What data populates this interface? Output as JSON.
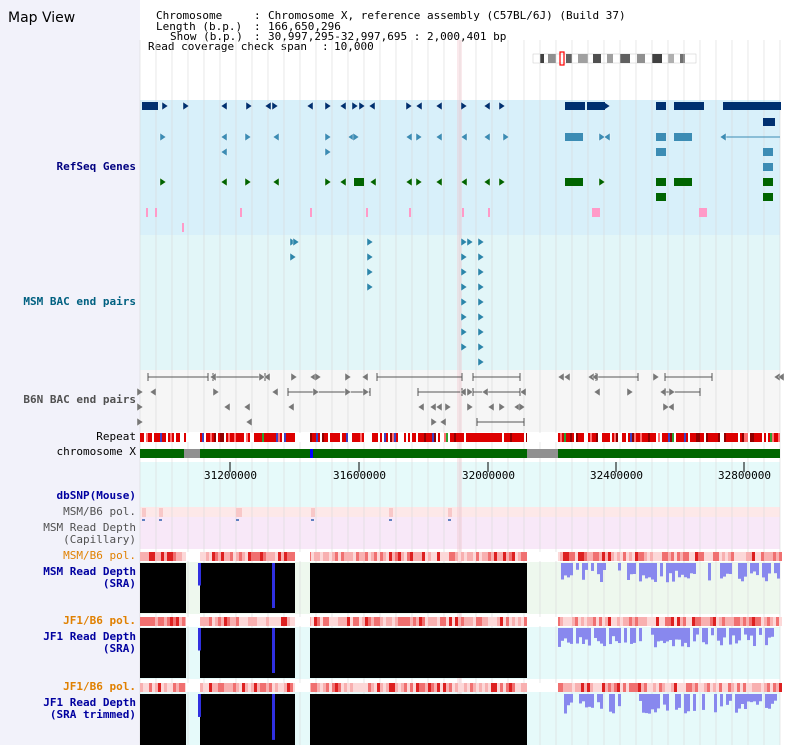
{
  "title": "Map View",
  "header": {
    "chromosome_key": "Chromosome",
    "chromosome_val": "Chromosome X, reference assembly (C57BL/6J) (Build 37)",
    "length_key": "Length (b.p.)",
    "length_val": "166,650,296",
    "show_key": "Show (b.p.)",
    "show_val": "30,997,295-32,997,695 : 2,000,401 bp",
    "coverage_key": "Read coverage check span",
    "coverage_val": "10,000"
  },
  "tracks": {
    "refseq": "RefSeq Genes",
    "msm_bac": "MSM BAC end pairs",
    "b6n_bac": "B6N BAC end pairs",
    "repeat": "Repeat",
    "chromosome": "chromosome X",
    "dbsnp": "dbSNP(Mouse)",
    "msm_b6_pol_1": "MSM/B6 pol.",
    "msm_depth_cap_1": "MSM Read Depth",
    "msm_depth_cap_2": "(Capillary)",
    "msm_b6_pol_2": "MSM/B6 pol.",
    "msm_depth_sra_1": "MSM Read Depth",
    "msm_depth_sra_2": "(SRA)",
    "jf1_b6_pol_1": "JF1/B6 pol.",
    "jf1_depth_sra_1": "JF1 Read Depth",
    "jf1_depth_sra_2": "(SRA)",
    "jf1_b6_pol_2": "JF1/B6 pol.",
    "jf1_depth_trim_1": "JF1 Read Depth",
    "jf1_depth_trim_2": "(SRA trimmed)"
  },
  "axis": {
    "ticks": [
      "31200000",
      "31600000",
      "32000000",
      "32400000",
      "32800000"
    ]
  },
  "colors": {
    "refseq_bg": "#d8f0fa",
    "msm_bg": "#e2f6f8",
    "gene_navy": "#003070",
    "gene_teal": "#3c8cb4",
    "gene_green": "#006400",
    "gene_pink": "#ff9ac8",
    "chrom_green": "#006600",
    "label_blue": "#000080",
    "label_orange": "#e08000",
    "label_grey": "#404040"
  }
}
